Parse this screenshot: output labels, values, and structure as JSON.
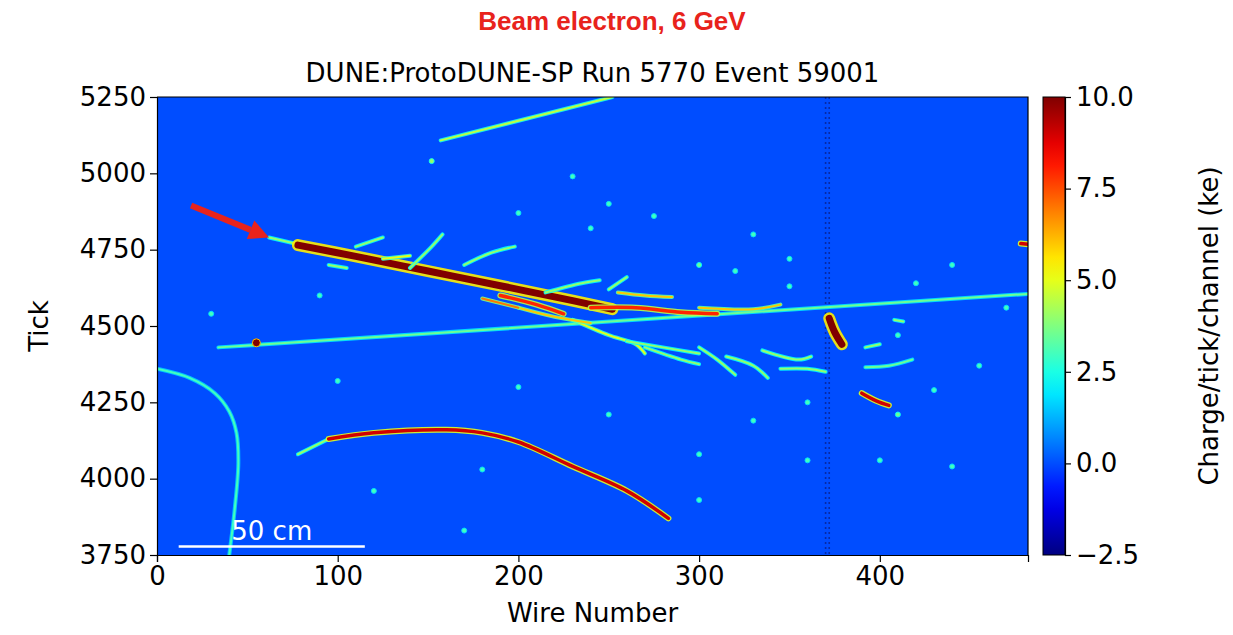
{
  "chart_data": {
    "type": "event_display",
    "supertitle": "Beam electron, 6 GeV",
    "title": "DUNE:ProtoDUNE-SP Run 5770 Event 59001",
    "x_label": "Wire Number",
    "y_label": "Tick",
    "xlim": [
      0,
      482
    ],
    "xticks": [
      0,
      100,
      200,
      300,
      400
    ],
    "ylim": [
      3750,
      5250
    ],
    "yticks": [
      3750,
      4000,
      4250,
      4500,
      4750,
      5000,
      5250
    ],
    "background": 0,
    "colorbar": {
      "label": "Charge/tick/channel (ke)",
      "range": [
        -2.5,
        10
      ],
      "ticks": [
        {
          "value": -2.5,
          "label": "−2.5"
        },
        {
          "value": 0,
          "label": "0.0"
        },
        2.5,
        {
          "value": 5,
          "label": "5.0"
        },
        7.5,
        {
          "value": 10,
          "label": "10.0"
        }
      ]
    },
    "tracks": [
      {
        "x": [
          157,
          252
        ],
        "y": [
          5108,
          5250
        ],
        "charge": 4.5
      },
      {
        "x": [
          34,
          482
        ],
        "y": [
          4430,
          4605
        ],
        "charge": 3.5
      },
      {
        "x": [
          62,
          80
        ],
        "y": [
          4790,
          4765
        ],
        "charge": 4
      },
      {
        "x": [
          78,
          110,
          150,
          190,
          230,
          252
        ],
        "y": [
          4765,
          4728,
          4680,
          4632,
          4583,
          4555
        ],
        "charge": 10
      },
      {
        "x": [
          140,
          152,
          158
        ],
        "y": [
          4690,
          4760,
          4800
        ],
        "charge": 4
      },
      {
        "x": [
          170,
          185,
          198
        ],
        "y": [
          4700,
          4740,
          4760
        ],
        "charge": 4
      },
      {
        "x": [
          125,
          140
        ],
        "y": [
          4720,
          4730
        ],
        "charge": 5
      },
      {
        "x": [
          190,
          210,
          225
        ],
        "y": [
          4600,
          4570,
          4540
        ],
        "charge": 8
      },
      {
        "x": [
          240,
          265,
          290,
          310
        ],
        "y": [
          4560,
          4560,
          4545,
          4540
        ],
        "charge": 8
      },
      {
        "x": [
          255,
          270,
          285
        ],
        "y": [
          4610,
          4600,
          4595
        ],
        "charge": 6
      },
      {
        "x": [
          300,
          330,
          345
        ],
        "y": [
          4560,
          4555,
          4570
        ],
        "charge": 6
      },
      {
        "x": [
          230,
          250,
          265,
          270
        ],
        "y": [
          4520,
          4470,
          4440,
          4410
        ],
        "charge": 5
      },
      {
        "x": [
          260,
          280,
          300
        ],
        "y": [
          4450,
          4430,
          4410
        ],
        "charge": 4
      },
      {
        "x": [
          270,
          290,
          300
        ],
        "y": [
          4430,
          4390,
          4375
        ],
        "charge": 4
      },
      {
        "x": [
          300,
          310,
          320
        ],
        "y": [
          4430,
          4390,
          4340
        ],
        "charge": 4
      },
      {
        "x": [
          315,
          330,
          338
        ],
        "y": [
          4400,
          4370,
          4330
        ],
        "charge": 4
      },
      {
        "x": [
          335,
          355,
          362
        ],
        "y": [
          4420,
          4390,
          4400
        ],
        "charge": 4
      },
      {
        "x": [
          345,
          360,
          370
        ],
        "y": [
          4360,
          4360,
          4350
        ],
        "charge": 4
      },
      {
        "x": [
          200,
          220,
          240
        ],
        "y": [
          4560,
          4530,
          4510
        ],
        "charge": 6
      },
      {
        "x": [
          180,
          200
        ],
        "y": [
          4590,
          4560
        ],
        "charge": 7
      },
      {
        "x": [
          110,
          125
        ],
        "y": [
          4760,
          4790
        ],
        "charge": 4
      },
      {
        "x": [
          95,
          105
        ],
        "y": [
          4700,
          4690
        ],
        "charge": 4
      },
      {
        "x": [
          215,
          235,
          245
        ],
        "y": [
          4610,
          4640,
          4650
        ],
        "charge": 4
      },
      {
        "x": [
          250,
          260
        ],
        "y": [
          4620,
          4660
        ],
        "charge": 4
      },
      {
        "x": [
          78,
          95
        ],
        "y": [
          4080,
          4130
        ],
        "charge": 4
      },
      {
        "x": [
          95,
          120,
          160,
          180,
          200,
          230,
          260,
          283
        ],
        "y": [
          4130,
          4150,
          4160,
          4150,
          4120,
          4040,
          3960,
          3870
        ],
        "charge": 9
      },
      {
        "x": [
          0,
          18,
          32,
          40,
          44,
          45,
          43,
          40
        ],
        "y": [
          4360,
          4330,
          4280,
          4220,
          4150,
          4050,
          3900,
          3750
        ],
        "charge": 3
      },
      {
        "x": [
          372,
          375,
          379
        ],
        "y": [
          4525,
          4480,
          4440
        ],
        "charge": 10
      },
      {
        "x": [
          390,
          398,
          405
        ],
        "y": [
          4280,
          4255,
          4240
        ],
        "charge": 9
      },
      {
        "x": [
          392,
          405,
          418
        ],
        "y": [
          4365,
          4370,
          4390
        ],
        "charge": 3.5
      },
      {
        "x": [
          408,
          413
        ],
        "y": [
          4520,
          4515
        ],
        "charge": 4
      },
      {
        "x": [
          392,
          400
        ],
        "y": [
          4430,
          4440
        ],
        "charge": 4
      },
      {
        "x": [
          478,
          482
        ],
        "y": [
          4770,
          4768
        ],
        "charge": 9
      }
    ],
    "hits": {
      "x": [
        152,
        230,
        250,
        240,
        300,
        320,
        350,
        330,
        420,
        440,
        470,
        455,
        430,
        410,
        360,
        330,
        300,
        250,
        180,
        120,
        170,
        300,
        360,
        400,
        440,
        275,
        200,
        55,
        30,
        90,
        100,
        200,
        350,
        410
      ],
      "y": [
        5040,
        4990,
        4900,
        4820,
        4700,
        4680,
        4720,
        4800,
        4640,
        4700,
        4560,
        4370,
        4290,
        4210,
        4250,
        4190,
        4080,
        4210,
        4030,
        3960,
        3830,
        3930,
        4060,
        4060,
        4040,
        4860,
        4870,
        4445,
        4540,
        4600,
        4320,
        4300,
        4630,
        4470
      ],
      "charge": [
        4,
        3,
        3,
        3,
        3.5,
        3,
        3,
        3,
        3,
        3,
        3,
        3,
        3,
        3.5,
        3,
        3,
        3,
        3,
        3,
        3,
        3,
        3,
        3,
        3,
        3,
        3,
        3,
        10,
        3,
        3,
        3,
        3,
        3,
        3
      ]
    },
    "noisy_wires": [
      370,
      372
    ],
    "scale_bar": {
      "text": "50 cm",
      "x": [
        12,
        115
      ],
      "y": 3778
    },
    "arrow": {
      "x": 62,
      "y": 4790
    }
  }
}
